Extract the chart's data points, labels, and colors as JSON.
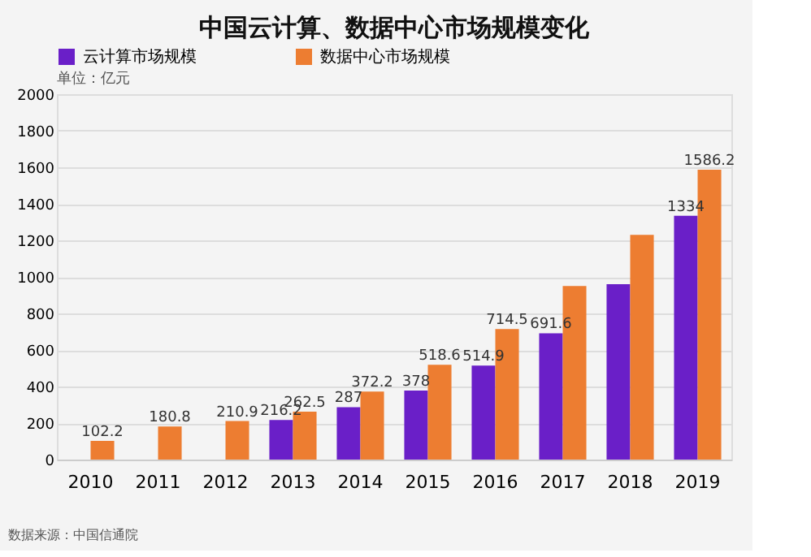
{
  "chart_data": {
    "type": "bar",
    "title": "中国云计算、数据中心市场规模变化",
    "categories": [
      "2010",
      "2011",
      "2012",
      "2013",
      "2014",
      "2015",
      "2016",
      "2017",
      "2018",
      "2019"
    ],
    "series": [
      {
        "name": "云计算市场规模",
        "color": "#6a1fc8",
        "values": [
          null,
          null,
          null,
          216.2,
          287,
          378,
          514.9,
          691.6,
          960,
          1334
        ],
        "value_labels": [
          null,
          null,
          null,
          "216.2",
          "287",
          "378",
          "514.9",
          "691.6",
          null,
          "1334"
        ]
      },
      {
        "name": "数据中心市场规模",
        "color": "#ed7d31",
        "values": [
          102.2,
          180.8,
          210.9,
          262.5,
          372.2,
          518.6,
          714.5,
          950,
          1230,
          1586.2
        ],
        "value_labels": [
          "102.2",
          "180.8",
          "210.9",
          "262.5",
          "372.2",
          "518.6",
          "714.5",
          null,
          null,
          "1586.2"
        ]
      }
    ],
    "ylim": [
      0,
      2000
    ],
    "yticks": [
      0,
      200,
      400,
      600,
      800,
      1000,
      1200,
      1400,
      1600,
      1800,
      2000
    ],
    "grid": "y",
    "legend": "top",
    "annotations": [
      "单位：亿元",
      "数据来源：中国信通院"
    ]
  }
}
